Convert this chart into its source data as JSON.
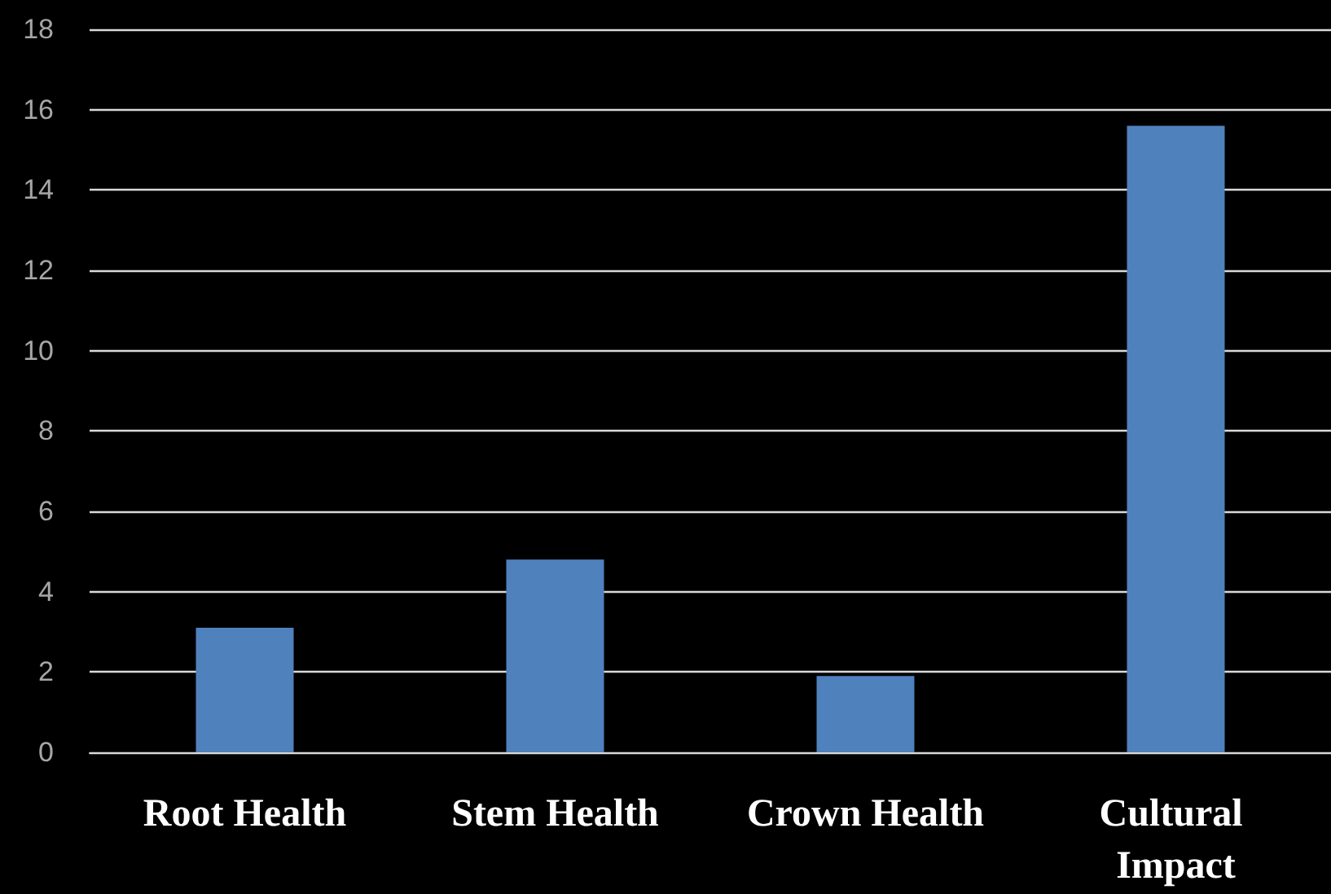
{
  "chart_data": {
    "type": "bar",
    "categories": [
      "Root Health",
      "Stem Health",
      "Crown Health",
      "Cultural Impact"
    ],
    "values": [
      3.1,
      4.8,
      1.9,
      15.6
    ],
    "color": "#4f81bd",
    "ylim": [
      0,
      18
    ],
    "yticks": [
      0,
      2,
      4,
      6,
      8,
      10,
      12,
      14,
      16,
      18
    ],
    "grid": "y"
  }
}
